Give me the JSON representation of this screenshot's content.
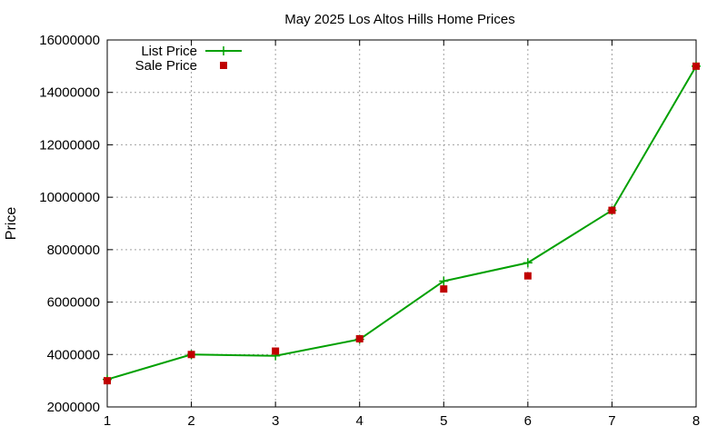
{
  "chart_data": {
    "type": "line",
    "title": "May 2025 Los Altos Hills Home Prices",
    "xlabel": "",
    "ylabel": "Price",
    "xlim": [
      1,
      8
    ],
    "ylim": [
      2000000,
      16000000
    ],
    "x_ticks": [
      1,
      2,
      3,
      4,
      5,
      6,
      7,
      8
    ],
    "y_ticks": [
      2000000,
      4000000,
      6000000,
      8000000,
      10000000,
      12000000,
      14000000,
      16000000
    ],
    "x_tick_labels": [
      "1",
      "2",
      "3",
      "4",
      "5",
      "6",
      "7",
      "8"
    ],
    "y_tick_labels": [
      "2000000",
      "4000000",
      "6000000",
      "8000000",
      "10000000",
      "12000000",
      "14000000",
      "16000000"
    ],
    "grid": true,
    "legend_position": "top-left",
    "series": [
      {
        "name": "List Price",
        "style": "line+plus",
        "color": "#00a000",
        "x": [
          1,
          2,
          3,
          4,
          5,
          6,
          7,
          8
        ],
        "values": [
          3050000,
          4000000,
          3950000,
          4580000,
          6800000,
          7500000,
          9500000,
          15000000
        ]
      },
      {
        "name": "Sale Price",
        "style": "square",
        "color": "#c00000",
        "x": [
          1,
          2,
          3,
          4,
          5,
          6,
          7,
          8
        ],
        "values": [
          3000000,
          4000000,
          4130000,
          4600000,
          6500000,
          7000000,
          9500000,
          15000000
        ]
      }
    ]
  }
}
